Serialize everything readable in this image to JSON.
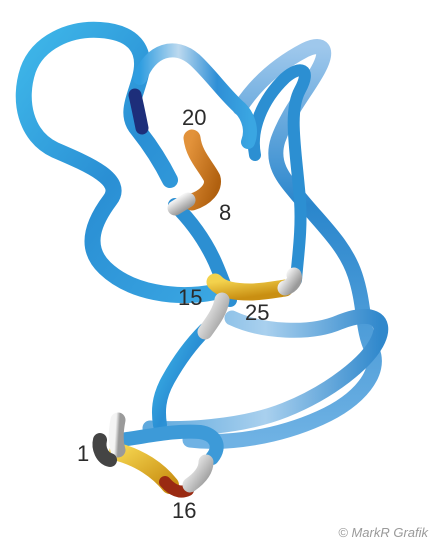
{
  "labels": {
    "res_20": "20",
    "res_8": "8",
    "res_15": "15",
    "res_25": "25",
    "res_1": "1",
    "res_16": "16"
  },
  "copyright": "© MarkR Grafik",
  "colors": {
    "backbone_main": "#2a8fd4",
    "backbone_light": "#3fb8ea",
    "backbone_pale": "#9fd0ee",
    "backbone_dark": "#1d4e9a",
    "bond_orange": "#d07a1c",
    "bond_yellow": "#e4b224",
    "bond_grey": "#bcbcbc"
  }
}
